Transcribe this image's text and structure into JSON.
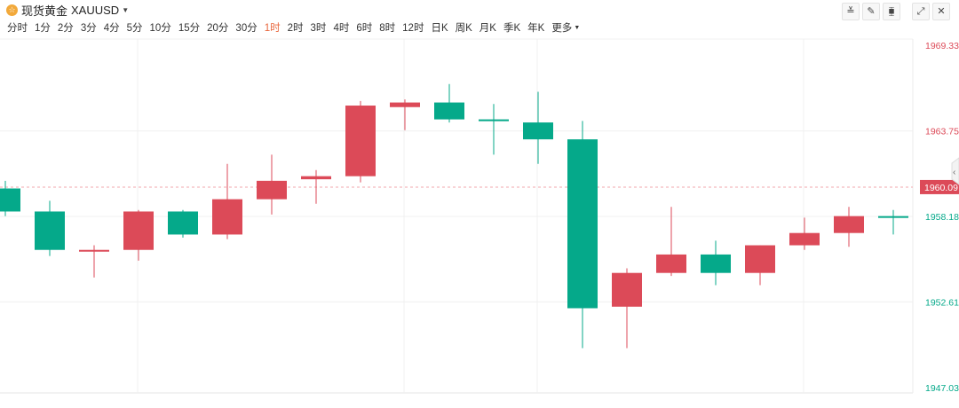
{
  "header": {
    "symbol_name": "现货黄金",
    "symbol_code": "XAUUSD",
    "coin_glyph": "☆",
    "tools": [
      {
        "icon": "line-tool-icon",
        "glyph": "≚"
      },
      {
        "icon": "draw-pencil-icon",
        "glyph": "✎"
      },
      {
        "icon": "candle-style-icon",
        "glyph": "⧯"
      },
      {
        "icon": "fullscreen-icon",
        "glyph": "⤢"
      },
      {
        "icon": "close-icon",
        "glyph": "✕"
      }
    ]
  },
  "periods": [
    "分时",
    "1分",
    "2分",
    "3分",
    "4分",
    "5分",
    "10分",
    "15分",
    "20分",
    "30分",
    "1时",
    "2时",
    "3时",
    "4时",
    "6时",
    "8时",
    "12时",
    "日K",
    "周K",
    "月K",
    "季K",
    "年K",
    "更多"
  ],
  "active_period": "1时",
  "colors": {
    "up": "#dc4a58",
    "down": "#05a98a",
    "grid": "#f0f0f0",
    "current_line": "#f2a7ad"
  },
  "chart_data": {
    "type": "candlestick",
    "ylim": [
      1947.03,
      1969.33
    ],
    "y_ticks": [
      {
        "value": 1969.33,
        "label": "1969.33",
        "color": "#dc4a58"
      },
      {
        "value": 1963.75,
        "label": "1963.75",
        "color": "#dc4a58"
      },
      {
        "value": 1958.18,
        "label": "1958.18",
        "color": "#05a98a"
      },
      {
        "value": 1952.61,
        "label": "1952.61",
        "color": "#05a98a"
      },
      {
        "value": 1947.03,
        "label": "1947.03",
        "color": "#05a98a"
      }
    ],
    "current_price": {
      "value": 1960.09,
      "label": "1960.09"
    },
    "candles": [
      {
        "open": 1960.0,
        "high": 1960.5,
        "low": 1958.2,
        "close": 1958.5
      },
      {
        "open": 1958.5,
        "high": 1959.2,
        "low": 1955.6,
        "close": 1956.0
      },
      {
        "open": 1956.0,
        "high": 1956.3,
        "low": 1954.2,
        "close": 1956.0
      },
      {
        "open": 1956.0,
        "high": 1958.6,
        "low": 1955.3,
        "close": 1958.5
      },
      {
        "open": 1958.5,
        "high": 1958.6,
        "low": 1956.8,
        "close": 1957.0
      },
      {
        "open": 1957.0,
        "high": 1961.6,
        "low": 1956.7,
        "close": 1959.3
      },
      {
        "open": 1959.3,
        "high": 1962.2,
        "low": 1958.3,
        "close": 1960.5
      },
      {
        "open": 1960.6,
        "high": 1961.2,
        "low": 1959.0,
        "close": 1960.8
      },
      {
        "open": 1960.8,
        "high": 1965.7,
        "low": 1960.4,
        "close": 1965.4
      },
      {
        "open": 1965.3,
        "high": 1965.8,
        "low": 1963.8,
        "close": 1965.6
      },
      {
        "open": 1965.6,
        "high": 1966.8,
        "low": 1964.3,
        "close": 1964.5
      },
      {
        "open": 1964.5,
        "high": 1965.5,
        "low": 1962.2,
        "close": 1964.4
      },
      {
        "open": 1964.3,
        "high": 1966.3,
        "low": 1961.6,
        "close": 1963.2
      },
      {
        "open": 1963.2,
        "high": 1964.4,
        "low": 1949.6,
        "close": 1952.2
      },
      {
        "open": 1952.3,
        "high": 1954.8,
        "low": 1949.6,
        "close": 1954.5
      },
      {
        "open": 1954.5,
        "high": 1958.8,
        "low": 1954.3,
        "close": 1955.7
      },
      {
        "open": 1955.7,
        "high": 1956.6,
        "low": 1953.7,
        "close": 1954.5
      },
      {
        "open": 1954.5,
        "high": 1956.3,
        "low": 1953.7,
        "close": 1956.3
      },
      {
        "open": 1956.3,
        "high": 1958.1,
        "low": 1956.0,
        "close": 1957.1
      },
      {
        "open": 1957.1,
        "high": 1958.8,
        "low": 1956.2,
        "close": 1958.2
      },
      {
        "open": 1958.2,
        "high": 1958.6,
        "low": 1957.0,
        "close": 1958.1
      }
    ]
  }
}
